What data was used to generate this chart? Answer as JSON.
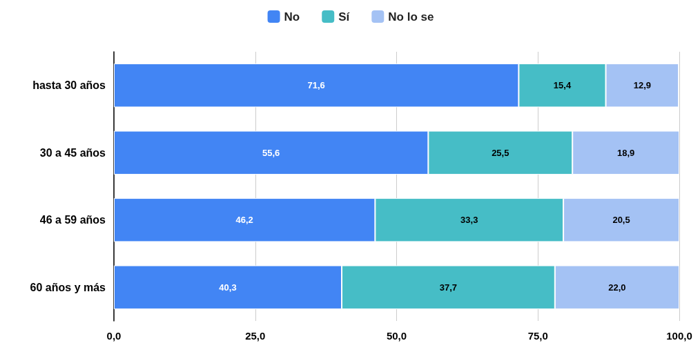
{
  "chart_data": {
    "type": "bar",
    "orientation": "horizontal",
    "stacked": true,
    "categories": [
      "hasta 30 años",
      "30 a 45 años",
      "46 a 59 años",
      "60 años y más"
    ],
    "series": [
      {
        "name": "No",
        "color": "#4285f4",
        "values": [
          71.6,
          55.6,
          46.2,
          40.3
        ],
        "value_labels": [
          "71,6",
          "55,6",
          "46,2",
          "40,3"
        ]
      },
      {
        "name": "Sí",
        "color": "#46bdc6",
        "values": [
          15.4,
          25.5,
          33.3,
          37.7
        ],
        "value_labels": [
          "15,4",
          "25,5",
          "33,3",
          "37,7"
        ]
      },
      {
        "name": "No lo se",
        "color": "#a4c2f4",
        "values": [
          12.9,
          18.9,
          20.5,
          22.0
        ],
        "value_labels": [
          "12,9",
          "18,9",
          "20,5",
          "22,0"
        ]
      }
    ],
    "xlim": [
      0,
      100
    ],
    "xticks": [
      {
        "value": 0,
        "label": "0,0"
      },
      {
        "value": 25,
        "label": "25,0"
      },
      {
        "value": 50,
        "label": "50,0"
      },
      {
        "value": 75,
        "label": "75,0"
      },
      {
        "value": 100,
        "label": "100,0"
      }
    ],
    "grid": "x",
    "legend": "top"
  }
}
